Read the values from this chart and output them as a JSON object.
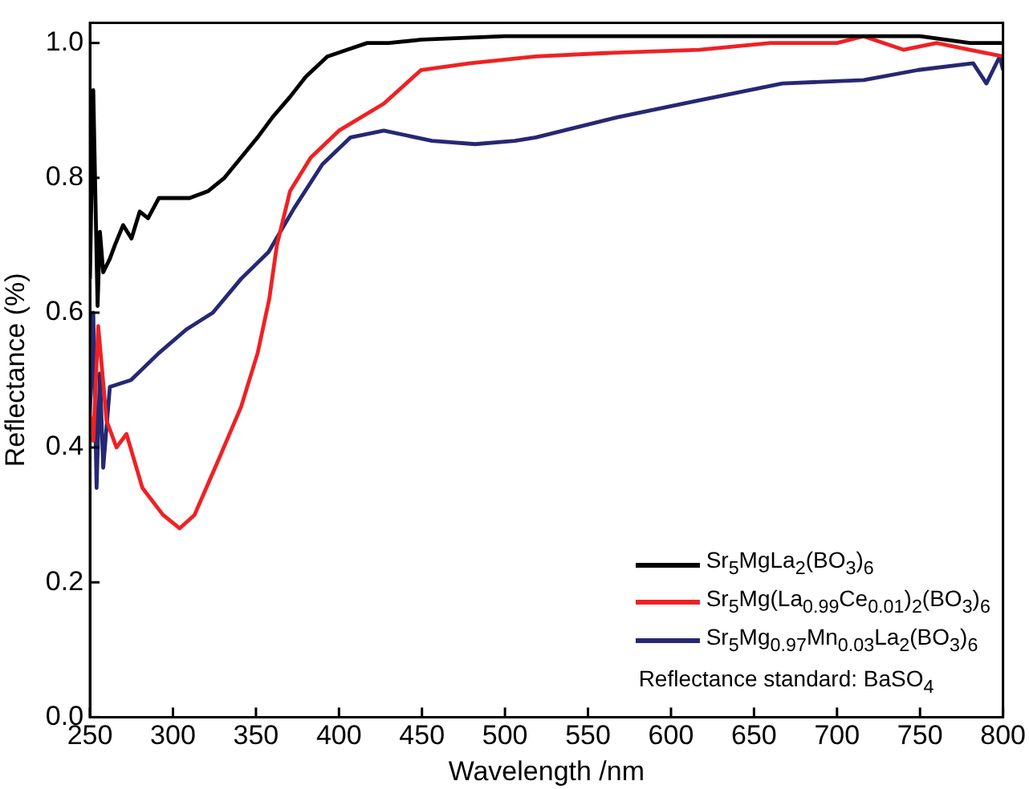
{
  "chart_data": {
    "type": "line",
    "xlabel": "Wavelength /nm",
    "ylabel": "Reflectance (%)",
    "xlim": [
      250,
      800
    ],
    "xticks": [
      250,
      300,
      350,
      400,
      450,
      500,
      550,
      600,
      650,
      700,
      750,
      800
    ],
    "ylim": [
      0,
      1.03
    ],
    "yticks": [
      {
        "value": 0,
        "label": "0.0"
      },
      {
        "value": 0.2,
        "label": "0.2"
      },
      {
        "value": 0.4,
        "label": "0.4"
      },
      {
        "value": 0.6,
        "label": "0.6"
      },
      {
        "value": 0.8,
        "label": "0.8"
      },
      {
        "value": 1,
        "label": "1.0"
      }
    ],
    "grid": false,
    "legend": "bottom right",
    "marker": "none",
    "line_style": "solid",
    "annotations": [
      "Reflectance standard: BaSO$_{4}$"
    ],
    "series": [
      {
        "name": "Sr$_{5}$MgLa$_{2}$(BO$_{3}$)$_{6}$",
        "color": "#000000",
        "x": [
          250,
          252,
          254.6,
          256,
          258,
          262,
          265,
          270,
          275,
          280,
          285,
          291.5,
          300,
          310,
          321,
          331,
          341,
          351,
          360,
          370.5,
          380,
          393,
          405,
          417,
          430,
          450,
          500,
          550,
          600,
          650,
          700,
          750,
          780,
          800
        ],
        "values": [
          0.65,
          0.93,
          0.61,
          0.72,
          0.66,
          0.68,
          0.7,
          0.73,
          0.71,
          0.75,
          0.74,
          0.77,
          0.77,
          0.77,
          0.78,
          0.8,
          0.83,
          0.86,
          0.89,
          0.92,
          0.95,
          0.98,
          0.99,
          1.0,
          1.0,
          1.005,
          1.01,
          1.01,
          1.01,
          1.01,
          1.01,
          1.01,
          1.0,
          1.0
        ]
      },
      {
        "name": "Sr$_{5}$Mg(La$_{0.99}$Ce$_{0.01}$)$_{2}$(BO$_{3}$)$_{6}$",
        "color": "#ee2224",
        "x": [
          250,
          252,
          255,
          260,
          266,
          272,
          281.6,
          294,
          304,
          313,
          328,
          341,
          351,
          358,
          362.6,
          370.5,
          383,
          400,
          427,
          449.5,
          479,
          518.6,
          560,
          617,
          660,
          700,
          716,
          740,
          760,
          780,
          800
        ],
        "values": [
          0.45,
          0.41,
          0.58,
          0.44,
          0.4,
          0.42,
          0.34,
          0.3,
          0.28,
          0.3,
          0.385,
          0.46,
          0.54,
          0.62,
          0.7,
          0.78,
          0.83,
          0.87,
          0.91,
          0.96,
          0.97,
          0.98,
          0.985,
          0.99,
          1.0,
          1.0,
          1.01,
          0.99,
          1.0,
          0.99,
          0.98
        ]
      },
      {
        "name": "Sr$_{5}$Mg$_{0.97}$Mn$_{0.03}$La$_{2}$(BO$_{3}$)$_{6}$",
        "color": "#262873",
        "x": [
          250,
          252,
          254,
          256,
          258,
          262,
          274.7,
          291.5,
          308,
          324,
          341,
          357.6,
          373,
          390,
          407,
          427,
          456,
          482,
          506,
          518.6,
          568,
          617,
          667,
          716,
          749,
          782,
          790,
          798,
          800
        ],
        "values": [
          0.45,
          0.6,
          0.34,
          0.51,
          0.37,
          0.49,
          0.5,
          0.54,
          0.575,
          0.6,
          0.65,
          0.69,
          0.755,
          0.82,
          0.86,
          0.87,
          0.855,
          0.85,
          0.855,
          0.86,
          0.89,
          0.915,
          0.94,
          0.945,
          0.96,
          0.97,
          0.94,
          0.98,
          0.96
        ]
      }
    ]
  }
}
